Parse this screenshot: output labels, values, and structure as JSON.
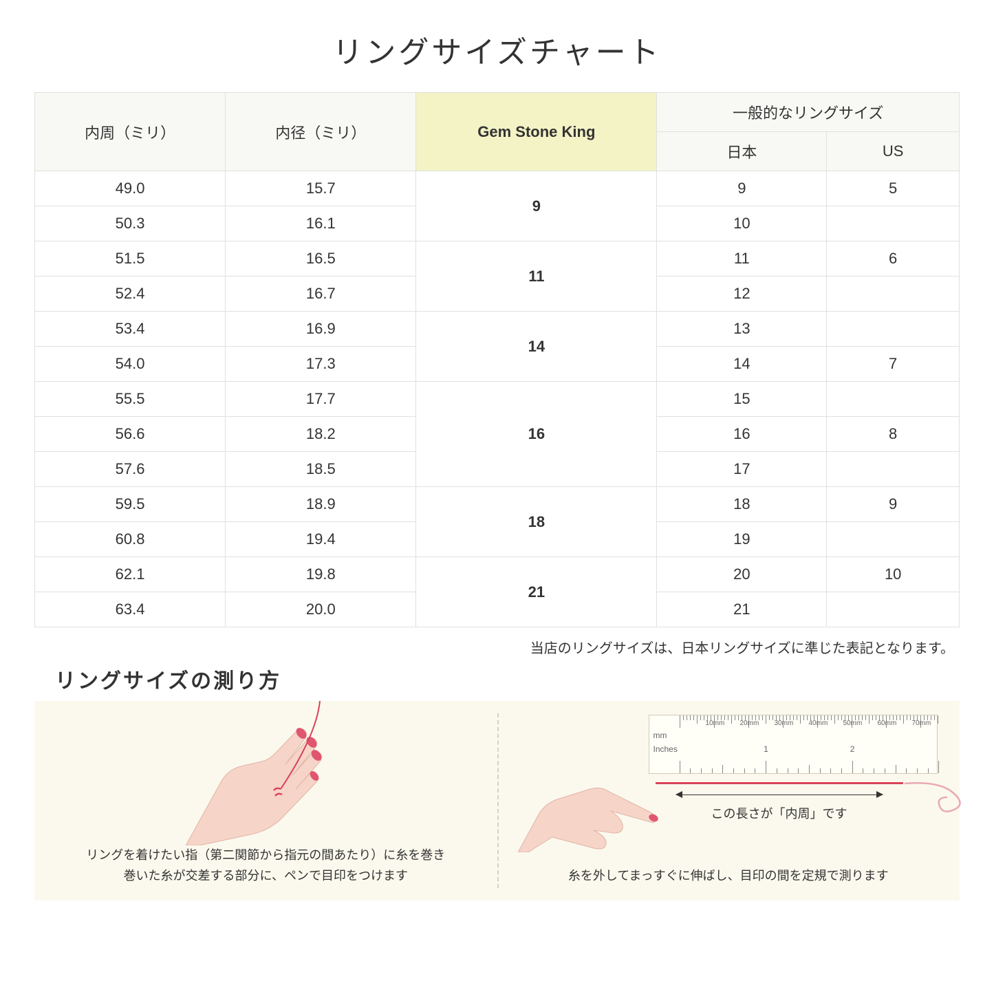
{
  "title": "リングサイズチャート",
  "headers": {
    "col1": "内周（ミリ）",
    "col2": "内径（ミリ）",
    "col3": "Gem Stone King",
    "col4_group": "一般的なリングサイズ",
    "col4a": "日本",
    "col4b": "US"
  },
  "groups": [
    {
      "gsk": "9",
      "rows": [
        {
          "c": "49.0",
          "d": "15.7",
          "jp": "9",
          "us": "5"
        },
        {
          "c": "50.3",
          "d": "16.1",
          "jp": "10",
          "us": ""
        }
      ]
    },
    {
      "gsk": "11",
      "rows": [
        {
          "c": "51.5",
          "d": "16.5",
          "jp": "11",
          "us": "6"
        },
        {
          "c": "52.4",
          "d": "16.7",
          "jp": "12",
          "us": ""
        }
      ]
    },
    {
      "gsk": "14",
      "rows": [
        {
          "c": "53.4",
          "d": "16.9",
          "jp": "13",
          "us": ""
        },
        {
          "c": "54.0",
          "d": "17.3",
          "jp": "14",
          "us": "7"
        }
      ]
    },
    {
      "gsk": "16",
      "rows": [
        {
          "c": "55.5",
          "d": "17.7",
          "jp": "15",
          "us": ""
        },
        {
          "c": "56.6",
          "d": "18.2",
          "jp": "16",
          "us": "8"
        },
        {
          "c": "57.6",
          "d": "18.5",
          "jp": "17",
          "us": ""
        }
      ]
    },
    {
      "gsk": "18",
      "rows": [
        {
          "c": "59.5",
          "d": "18.9",
          "jp": "18",
          "us": "9"
        },
        {
          "c": "60.8",
          "d": "19.4",
          "jp": "19",
          "us": ""
        }
      ]
    },
    {
      "gsk": "21",
      "rows": [
        {
          "c": "62.1",
          "d": "19.8",
          "jp": "20",
          "us": "10"
        },
        {
          "c": "63.4",
          "d": "20.0",
          "jp": "21",
          "us": ""
        }
      ]
    }
  ],
  "note": "当店のリングサイズは、日本リングサイズに準じた表記となります。",
  "howto": {
    "title": "リングサイズの測り方",
    "left_caption": "リングを着けたい指（第二関節から指元の間あたり）に糸を巻き\n巻いた糸が交差する部分に、ペンで目印をつけます",
    "right_caption": "糸を外してまっすぐに伸ばし、目印の間を定規で測ります",
    "measure_label": "この長さが「内周」です",
    "ruler_mm": "mm",
    "ruler_in": "Inches",
    "mm_labels": [
      "10mm",
      "20mm",
      "30mm",
      "40mm",
      "50mm",
      "60mm",
      "70mm"
    ],
    "in_labels": [
      "1",
      "2"
    ]
  },
  "colors": {
    "skin": "#f6d4c8",
    "nail": "#e0556f",
    "thread": "#d9425a",
    "panel_bg": "#fbf9ed",
    "header_bg": "#f8f8f5",
    "highlight_bg": "#f3f3c6",
    "border": "#e0e0e0"
  }
}
